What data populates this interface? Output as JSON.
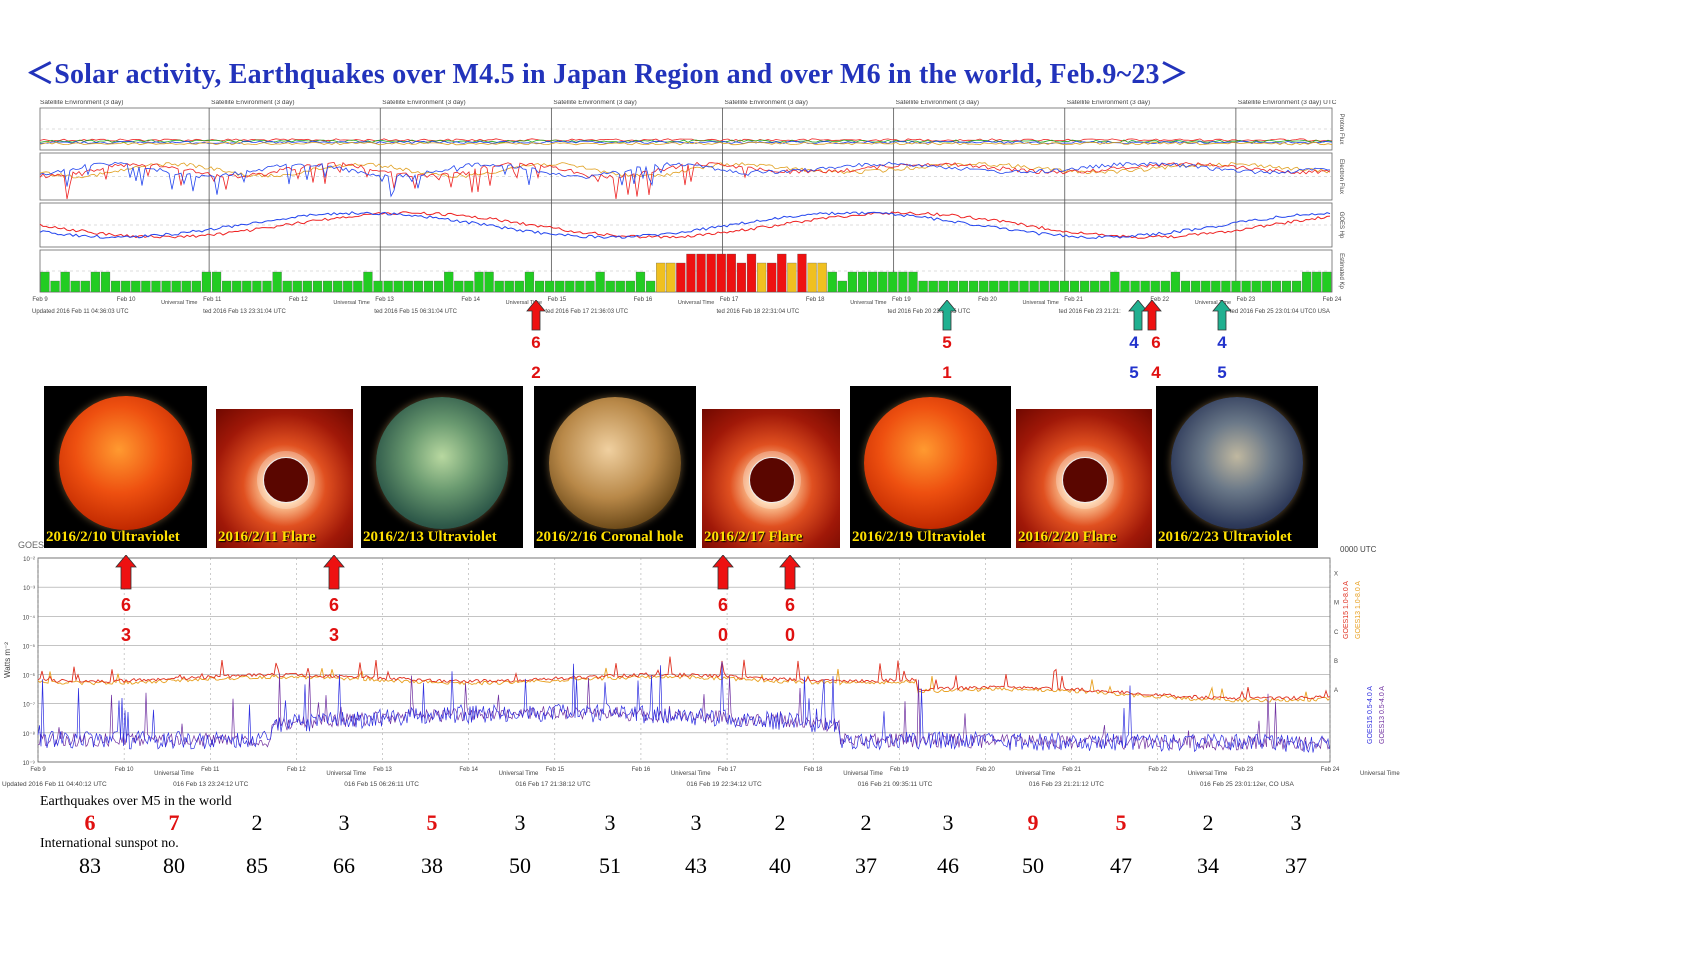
{
  "title": "＜Solar activity, Earthquakes over M4.5 in Japan Region and over M6 in the world, Feb.9~23＞",
  "top_panel": {
    "header_label": "Satellite Environment (3 day)",
    "header_last": "Satellite Environment (3 day) UTC",
    "right_labels": [
      "Proton Flux",
      "Electron Flux",
      "GOES Hp",
      "Estimated Kp"
    ],
    "date_ticks": [
      "Feb 9",
      "Feb 10",
      "Feb 11",
      "Feb 12",
      "Feb 13",
      "Feb 14",
      "Feb 15",
      "Feb 16",
      "Feb 17",
      "Feb 18",
      "Feb 19",
      "Feb 20",
      "Feb 21",
      "Feb 22",
      "Feb 23",
      "Feb 24"
    ],
    "axis_caption": "Universal Time",
    "updated": [
      "Updated 2016 Feb 11 04:36:03 UTC",
      "ted 2016 Feb 13 23:31:04 UTC",
      "ted 2016 Feb 15 06:31:04 UTC",
      "ted 2016 Feb 17 21:36:03 UTC",
      "ted 2016 Feb 18 22:31:04 UTC",
      "ted 2016 Feb 20 23:31:05 UTC",
      "ted 2016 Feb 23 21:21:",
      "ted 2016 Feb 25 23:01:04 UTC0 USA"
    ],
    "kp_colors": {
      "low": "#22cc22",
      "mid": "#f0c020",
      "high": "#ee1111"
    }
  },
  "event_arrows_top": [
    {
      "color": "red",
      "digits": [
        "6",
        "2"
      ],
      "digit_colors": [
        "#e01010",
        "#e01010"
      ]
    },
    {
      "color": "teal",
      "digits": [
        "5",
        "1"
      ],
      "digit_colors": [
        "#e01010",
        "#e01010"
      ]
    },
    {
      "color": "teal",
      "digits": [
        "4",
        "5"
      ],
      "digit_colors": [
        "#2233cc",
        "#2233cc"
      ]
    },
    {
      "color": "red",
      "digits": [
        "6",
        "4"
      ],
      "digit_colors": [
        "#e01010",
        "#e01010"
      ]
    },
    {
      "color": "teal",
      "digits": [
        "4",
        "5"
      ],
      "digit_colors": [
        "#2233cc",
        "#2233cc"
      ]
    }
  ],
  "images": [
    {
      "caption": "2016/2/10 Ultraviolet",
      "kind": "sun-orange"
    },
    {
      "caption": "2016/2/11 Flare",
      "kind": "lasco"
    },
    {
      "caption": "2016/2/13 Ultraviolet",
      "kind": "sun-green"
    },
    {
      "caption": "2016/2/16  Coronal hole",
      "kind": "sun-brown"
    },
    {
      "caption": "2016/2/17 Flare",
      "kind": "lasco"
    },
    {
      "caption": "2016/2/19 Ultraviolet",
      "kind": "sun-orange"
    },
    {
      "caption": "2016/2/20 Flare",
      "kind": "lasco"
    },
    {
      "caption": "2016/2/23 Ultraviolet",
      "kind": "sun-blue"
    }
  ],
  "xray_panel": {
    "header_left": "GOES",
    "header_right": "0000 UTC",
    "ylabel": "Watts m⁻²",
    "ytick_labels": [
      "10⁻²",
      "10⁻³",
      "10⁻⁴",
      "10⁻⁵",
      "10⁻⁶",
      "10⁻⁷",
      "10⁻⁸",
      "10⁻⁹"
    ],
    "class_letters": [
      "X",
      "M",
      "C",
      "B",
      "A"
    ],
    "legend": [
      {
        "label": "GOES15 1.0-8.0 A",
        "color": "#e03020"
      },
      {
        "label": "GOES13 1.0-8.0 A",
        "color": "#e8a020"
      },
      {
        "label": "GOES15 0.5-4.0 A",
        "color": "#3030e0"
      },
      {
        "label": "GOES13 0.5-4.0 A",
        "color": "#7030a0"
      }
    ],
    "date_ticks": [
      "Feb 9",
      "Feb 10",
      "Feb 11",
      "Feb 12",
      "Feb 13",
      "Feb 14",
      "Feb 15",
      "Feb 16",
      "Feb 17",
      "Feb 18",
      "Feb 19",
      "Feb 20",
      "Feb 21",
      "Feb 22",
      "Feb 23",
      "Feb 24"
    ],
    "axis_caption": "Universal Time",
    "updated": [
      "Updated 2016 Feb 11 04:40:12 UTC",
      "016 Feb 13 23:24:12 UTC",
      "016 Feb 15 06:26:11 UTC",
      "016 Feb 17 21:38:12 UTC",
      "016 Feb 19 22:34:12 UTC",
      "016 Feb 21 09:35:11 UTC",
      "016 Feb 23 21:21:12 UTC",
      "016 Feb 25 23:01:12er, CO USA"
    ]
  },
  "event_arrows_bottom": [
    {
      "digits": [
        "6",
        "3"
      ]
    },
    {
      "digits": [
        "6",
        "3"
      ]
    },
    {
      "digits": [
        "6",
        "0"
      ]
    },
    {
      "digits": [
        "6",
        "0"
      ]
    }
  ],
  "chart_data": {
    "type": "table",
    "rows": [
      {
        "label": "Earthquakes over M5 in the world",
        "values": [
          6,
          7,
          2,
          3,
          5,
          3,
          3,
          3,
          2,
          2,
          3,
          9,
          5,
          2,
          3
        ],
        "highlight": [
          true,
          true,
          false,
          false,
          true,
          false,
          false,
          false,
          false,
          false,
          false,
          true,
          true,
          false,
          false
        ]
      },
      {
        "label": "International sunspot no.",
        "values": [
          83,
          80,
          85,
          66,
          38,
          50,
          51,
          43,
          40,
          37,
          46,
          50,
          47,
          34,
          37
        ]
      }
    ]
  }
}
